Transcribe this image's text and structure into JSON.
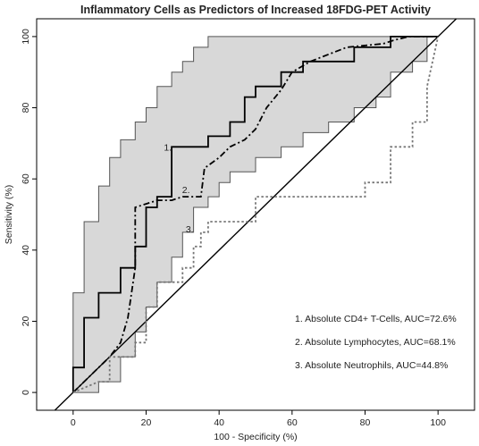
{
  "chart_data": {
    "type": "line",
    "title": "Inflammatory Cells as Predictors of Increased 18FDG-PET Activity",
    "xlabel": "100 - Specificity (%)",
    "ylabel": "Sensitivity (%)",
    "xlim": [
      -10,
      110
    ],
    "ylim": [
      -5,
      105
    ],
    "xticks": [
      0,
      20,
      40,
      60,
      80,
      100
    ],
    "yticks": [
      0,
      20,
      40,
      60,
      80,
      100
    ],
    "grid": false,
    "legend_position": "bottom-right",
    "colors": {
      "band_fill": "#d8d8d8",
      "band_edge": "#555555",
      "curve": "#000000",
      "neutrophil_curve": "#777777"
    },
    "confidence_band": {
      "upper": [
        [
          0,
          7
        ],
        [
          0,
          28
        ],
        [
          3,
          28
        ],
        [
          3,
          48
        ],
        [
          7,
          48
        ],
        [
          7,
          58
        ],
        [
          10,
          58
        ],
        [
          10,
          66
        ],
        [
          13,
          66
        ],
        [
          13,
          71
        ],
        [
          17,
          71
        ],
        [
          17,
          76
        ],
        [
          20,
          76
        ],
        [
          20,
          80
        ],
        [
          23,
          80
        ],
        [
          23,
          86
        ],
        [
          27,
          86
        ],
        [
          27,
          90
        ],
        [
          30,
          90
        ],
        [
          30,
          93
        ],
        [
          33,
          93
        ],
        [
          33,
          97
        ],
        [
          37,
          97
        ],
        [
          37,
          100
        ],
        [
          100,
          100
        ]
      ],
      "lower": [
        [
          0,
          0
        ],
        [
          7,
          0
        ],
        [
          7,
          3
        ],
        [
          13,
          3
        ],
        [
          13,
          10
        ],
        [
          17,
          10
        ],
        [
          17,
          17
        ],
        [
          20,
          17
        ],
        [
          20,
          24
        ],
        [
          23,
          24
        ],
        [
          23,
          31
        ],
        [
          27,
          31
        ],
        [
          27,
          38
        ],
        [
          30,
          38
        ],
        [
          30,
          45
        ],
        [
          33,
          45
        ],
        [
          33,
          52
        ],
        [
          37,
          52
        ],
        [
          37,
          55
        ],
        [
          40,
          55
        ],
        [
          40,
          59
        ],
        [
          43,
          59
        ],
        [
          43,
          62
        ],
        [
          50,
          62
        ],
        [
          50,
          66
        ],
        [
          57,
          66
        ],
        [
          57,
          69
        ],
        [
          63,
          69
        ],
        [
          63,
          73
        ],
        [
          70,
          73
        ],
        [
          70,
          76
        ],
        [
          77,
          76
        ],
        [
          77,
          80
        ],
        [
          83,
          80
        ],
        [
          83,
          83
        ],
        [
          87,
          83
        ],
        [
          87,
          90
        ],
        [
          93,
          90
        ],
        [
          93,
          93
        ],
        [
          97,
          93
        ],
        [
          97,
          100
        ],
        [
          100,
          100
        ]
      ]
    },
    "series": [
      {
        "name": "1",
        "style": "solid",
        "points": [
          [
            0,
            0
          ],
          [
            0,
            7
          ],
          [
            3,
            7
          ],
          [
            3,
            21
          ],
          [
            7,
            21
          ],
          [
            7,
            28
          ],
          [
            13,
            28
          ],
          [
            13,
            35
          ],
          [
            17,
            35
          ],
          [
            17,
            41
          ],
          [
            20,
            41
          ],
          [
            20,
            52
          ],
          [
            23,
            52
          ],
          [
            23,
            55
          ],
          [
            27,
            55
          ],
          [
            27,
            69
          ],
          [
            37,
            69
          ],
          [
            37,
            72
          ],
          [
            43,
            72
          ],
          [
            43,
            76
          ],
          [
            47,
            76
          ],
          [
            47,
            83
          ],
          [
            50,
            83
          ],
          [
            50,
            86
          ],
          [
            57,
            86
          ],
          [
            57,
            90
          ],
          [
            63,
            90
          ],
          [
            63,
            93
          ],
          [
            77,
            93
          ],
          [
            77,
            97
          ],
          [
            87,
            97
          ],
          [
            87,
            100
          ],
          [
            100,
            100
          ]
        ]
      },
      {
        "name": "2",
        "style": "dash-dot",
        "points": [
          [
            0,
            0
          ],
          [
            3,
            3
          ],
          [
            7,
            7
          ],
          [
            10,
            10
          ],
          [
            13,
            14
          ],
          [
            15,
            21
          ],
          [
            17,
            35
          ],
          [
            17,
            52
          ],
          [
            20,
            53
          ],
          [
            23,
            54
          ],
          [
            27,
            54
          ],
          [
            30,
            55
          ],
          [
            35,
            55
          ],
          [
            36,
            63
          ],
          [
            40,
            66
          ],
          [
            43,
            69
          ],
          [
            47,
            71
          ],
          [
            50,
            74
          ],
          [
            53,
            80
          ],
          [
            57,
            85
          ],
          [
            60,
            90
          ],
          [
            65,
            93
          ],
          [
            70,
            95
          ],
          [
            75,
            97
          ],
          [
            85,
            98
          ],
          [
            88,
            99
          ],
          [
            92,
            100
          ],
          [
            100,
            100
          ]
        ]
      },
      {
        "name": "3",
        "style": "dotted",
        "points": [
          [
            0,
            0
          ],
          [
            7,
            3
          ],
          [
            10,
            3
          ],
          [
            10,
            10
          ],
          [
            17,
            10
          ],
          [
            17,
            14
          ],
          [
            20,
            14
          ],
          [
            20,
            24
          ],
          [
            23,
            24
          ],
          [
            23,
            31
          ],
          [
            30,
            31
          ],
          [
            30,
            35
          ],
          [
            33,
            35
          ],
          [
            33,
            41
          ],
          [
            35,
            41
          ],
          [
            35,
            45
          ],
          [
            37,
            45
          ],
          [
            37,
            48
          ],
          [
            50,
            48
          ],
          [
            50,
            55
          ],
          [
            80,
            55
          ],
          [
            80,
            59
          ],
          [
            87,
            59
          ],
          [
            87,
            69
          ],
          [
            93,
            69
          ],
          [
            93,
            76
          ],
          [
            97,
            76
          ],
          [
            97,
            86
          ],
          [
            100,
            100
          ]
        ]
      }
    ],
    "diagonal": [
      [
        -5,
        -5
      ],
      [
        105,
        105
      ]
    ],
    "curve_labels": [
      {
        "text": "1.",
        "x": 27,
        "y": 69
      },
      {
        "text": "2.",
        "x": 32,
        "y": 57
      },
      {
        "text": "3.",
        "x": 33,
        "y": 46
      }
    ],
    "legend": [
      "1. Absolute CD4+ T-Cells, AUC=72.6%",
      "2. Absolute Lymphocytes, AUC=68.1%",
      "3. Absolute Neutrophils, AUC=44.8%"
    ]
  }
}
